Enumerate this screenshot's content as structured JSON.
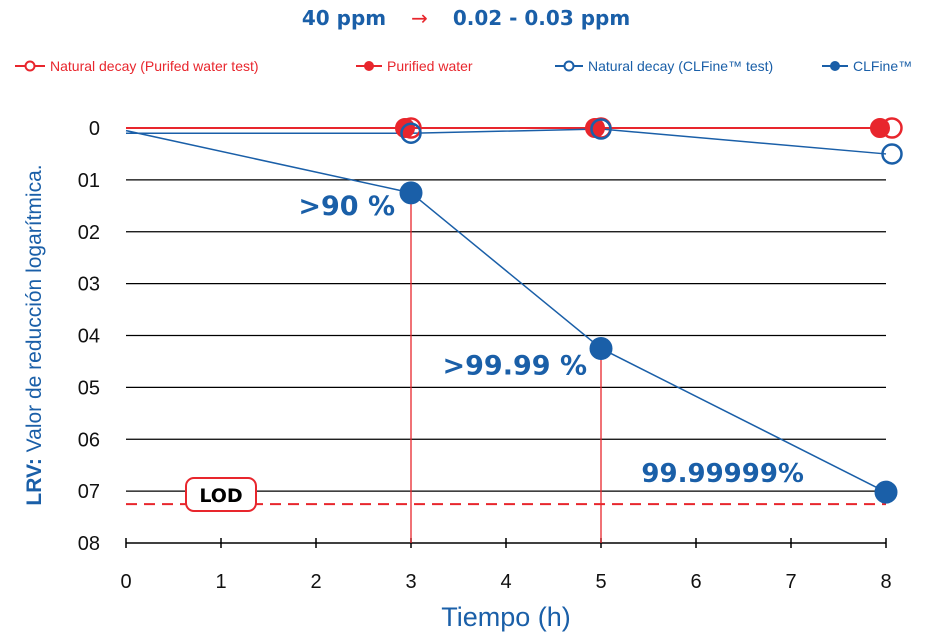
{
  "header": {
    "from_concentration": "40 ppm",
    "arrow": "→",
    "to_concentration": "0.02 - 0.03 ppm"
  },
  "colors": {
    "red": "#e8262d",
    "blue": "#1a5fa8",
    "grid": "#000000"
  },
  "chart_data": {
    "type": "line",
    "xlabel": "Tiempo (h)",
    "ylabel_bold": "LRV:",
    "ylabel": "Valor de reducción logarítmica.",
    "x_ticks": [
      "0",
      "1",
      "2",
      "3",
      "4",
      "5",
      "6",
      "7",
      "8"
    ],
    "y_ticks": [
      "0",
      "01",
      "02",
      "03",
      "04",
      "05",
      "06",
      "07",
      "08"
    ],
    "xlim": [
      0,
      8
    ],
    "ylim": [
      0,
      8
    ],
    "y_inverted": true,
    "grid": "horizontal",
    "legend_position": "top",
    "series": [
      {
        "name": "Natural decay (Purifed water test)",
        "color": "#e8262d",
        "marker": "open-circle",
        "line": true,
        "x": [
          0,
          3,
          5,
          8
        ],
        "y": [
          0,
          0,
          0,
          0
        ]
      },
      {
        "name": "Purified water",
        "color": "#e8262d",
        "marker": "filled-circle",
        "line": false,
        "x": [
          3,
          5,
          8
        ],
        "y": [
          0,
          0,
          0
        ]
      },
      {
        "name": "Natural decay (CLFine™ test)",
        "color": "#1a5fa8",
        "marker": "open-circle",
        "line": true,
        "x": [
          0,
          3,
          5,
          8
        ],
        "y": [
          0.1,
          0.1,
          0.02,
          0.5
        ]
      },
      {
        "name": "CLFine™",
        "color": "#1a5fa8",
        "marker": "filled-circle",
        "line": true,
        "x": [
          0,
          3,
          5,
          8
        ],
        "y": [
          0.05,
          1.25,
          4.25,
          7.02
        ]
      }
    ],
    "annotations": [
      {
        "text": ">90 %",
        "x": 3,
        "y": 1.25
      },
      {
        "text": ">99.99 %",
        "x": 5,
        "y": 4.25
      },
      {
        "text": "99.99999%",
        "x": 8,
        "y": 7.02
      }
    ],
    "reference_lines": [
      {
        "label": "LOD",
        "y": 7.25,
        "color": "#e8262d",
        "style": "dashed"
      }
    ]
  }
}
